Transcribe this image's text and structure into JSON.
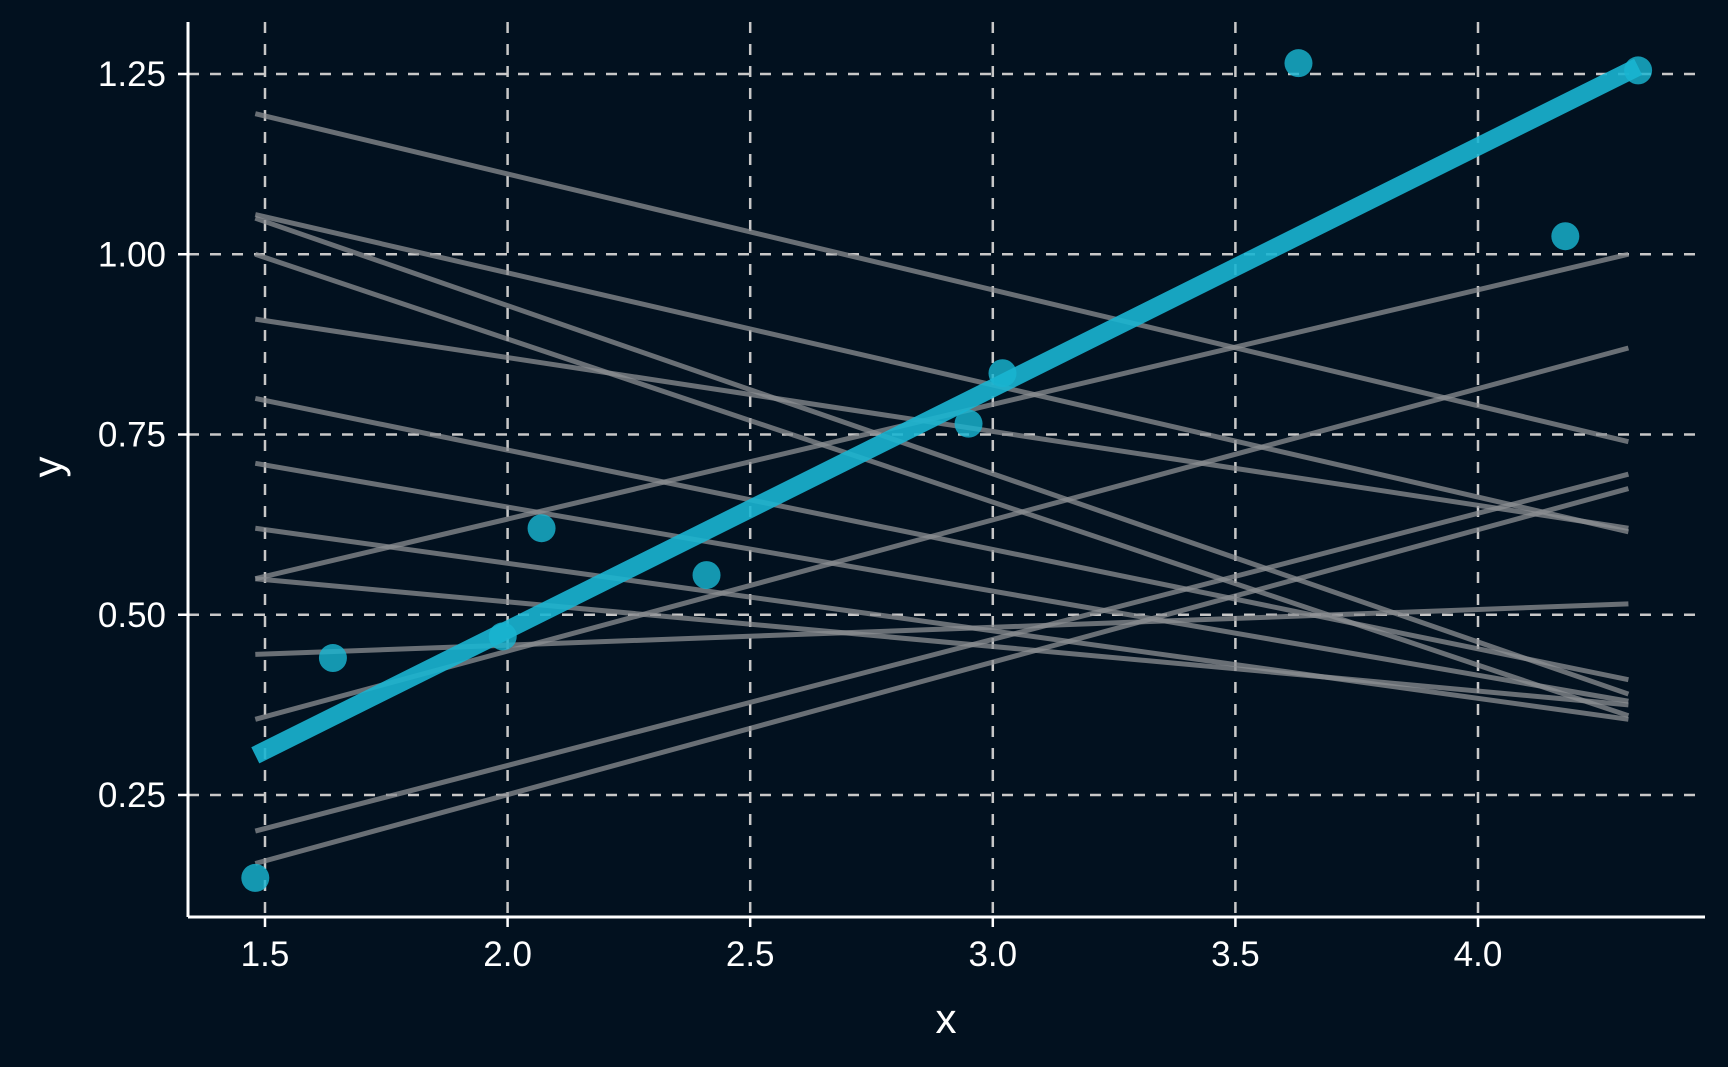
{
  "colors": {
    "background": "#02111f",
    "grid": "#c8c8c8",
    "axis": "#ffffff",
    "text": "#ffffff",
    "fit_line": "#19b5d1",
    "points": "#19b5d1",
    "random_lines": "#8c8f93"
  },
  "chart_data": {
    "type": "scatter",
    "title": "",
    "xlabel": "x",
    "ylabel": "y",
    "xlim": [
      1.34,
      4.47
    ],
    "ylim": [
      0.095,
      1.32
    ],
    "x_ticks": [
      1.5,
      2.0,
      2.5,
      3.0,
      3.5,
      4.0
    ],
    "x_tick_labels": [
      "1.5",
      "2.0",
      "2.5",
      "3.0",
      "3.5",
      "4.0"
    ],
    "y_ticks": [
      0.25,
      0.5,
      0.75,
      1.0,
      1.25
    ],
    "y_tick_labels": [
      "0.25",
      "0.50",
      "0.75",
      "1.00",
      "1.25"
    ],
    "grid": true,
    "grid_style": "dashed",
    "points": [
      {
        "x": 1.48,
        "y": 0.135
      },
      {
        "x": 1.64,
        "y": 0.44
      },
      {
        "x": 1.99,
        "y": 0.47
      },
      {
        "x": 2.07,
        "y": 0.62
      },
      {
        "x": 2.41,
        "y": 0.555
      },
      {
        "x": 2.95,
        "y": 0.765
      },
      {
        "x": 3.02,
        "y": 0.835
      },
      {
        "x": 3.63,
        "y": 1.265
      },
      {
        "x": 4.18,
        "y": 1.025
      },
      {
        "x": 4.33,
        "y": 1.255
      }
    ],
    "fit_line": {
      "x": [
        1.48,
        4.33
      ],
      "y": [
        0.305,
        1.26
      ]
    },
    "random_lines": [
      {
        "x": [
          1.48,
          4.31
        ],
        "y": [
          1.195,
          0.74
        ]
      },
      {
        "x": [
          1.48,
          4.31
        ],
        "y": [
          1.055,
          0.615
        ]
      },
      {
        "x": [
          1.48,
          4.31
        ],
        "y": [
          1.05,
          0.39
        ]
      },
      {
        "x": [
          1.48,
          4.31
        ],
        "y": [
          1.0,
          0.36
        ]
      },
      {
        "x": [
          1.48,
          4.31
        ],
        "y": [
          0.91,
          0.62
        ]
      },
      {
        "x": [
          1.48,
          4.31
        ],
        "y": [
          0.8,
          0.41
        ]
      },
      {
        "x": [
          1.48,
          4.31
        ],
        "y": [
          0.71,
          0.38
        ]
      },
      {
        "x": [
          1.48,
          4.31
        ],
        "y": [
          0.62,
          0.355
        ]
      },
      {
        "x": [
          1.48,
          4.31
        ],
        "y": [
          0.55,
          0.375
        ]
      },
      {
        "x": [
          1.48,
          4.31
        ],
        "y": [
          0.55,
          1.0
        ]
      },
      {
        "x": [
          1.48,
          4.31
        ],
        "y": [
          0.445,
          0.515
        ]
      },
      {
        "x": [
          1.48,
          4.31
        ],
        "y": [
          0.355,
          0.87
        ]
      },
      {
        "x": [
          1.48,
          4.31
        ],
        "y": [
          0.2,
          0.695
        ]
      },
      {
        "x": [
          1.48,
          4.31
        ],
        "y": [
          0.155,
          0.675
        ]
      }
    ]
  }
}
